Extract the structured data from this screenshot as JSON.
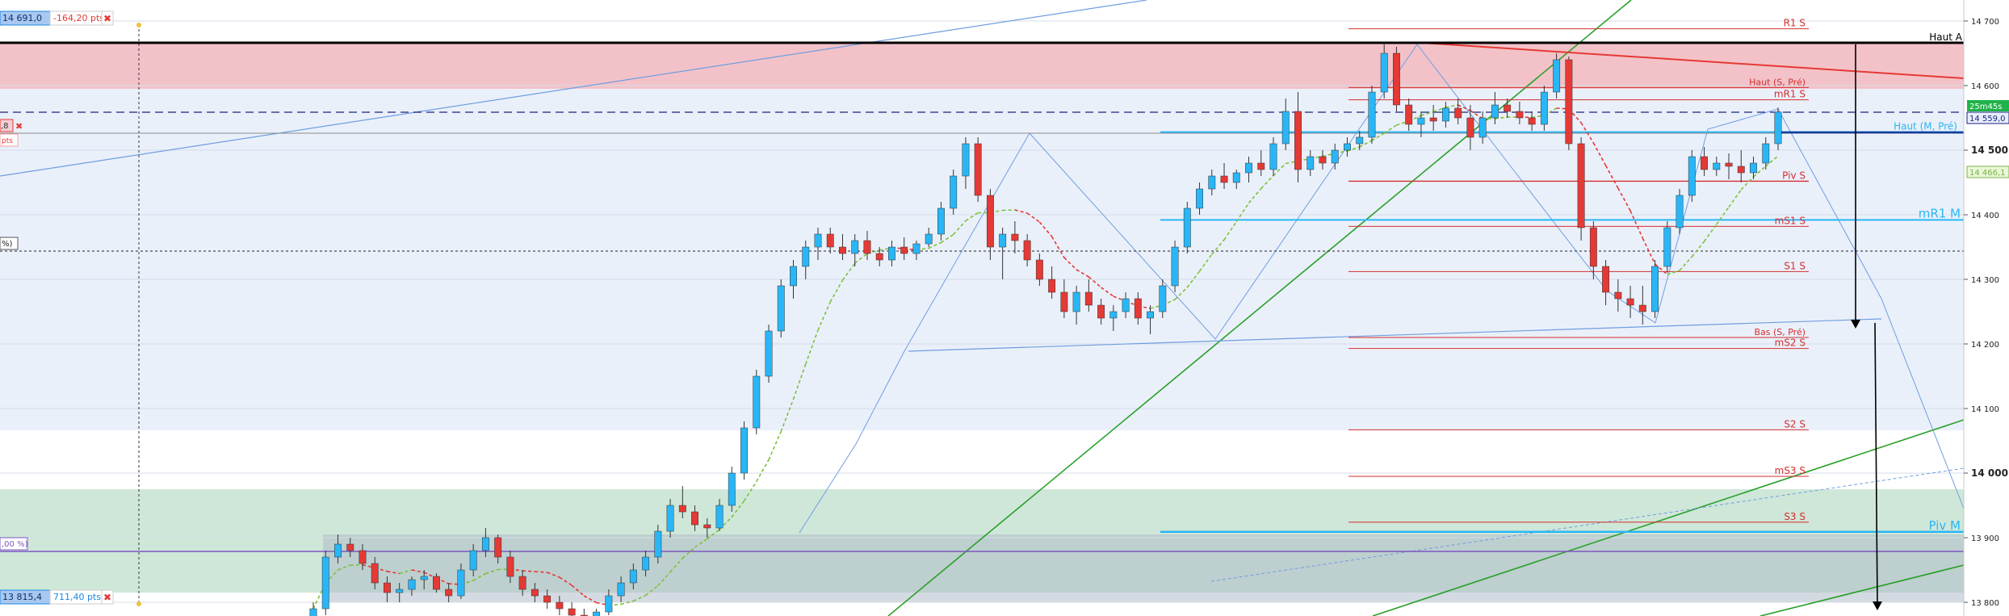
{
  "chart_data": {
    "type": "candlestick",
    "title": "",
    "xlabel": "",
    "ylabel": "",
    "y_range": [
      13800,
      14730
    ],
    "y_ticks": [
      "14 700",
      "14 600",
      "14 500",
      "14 400",
      "14 300",
      "14 200",
      "14 100",
      "14 000",
      "13 900",
      "13 800"
    ],
    "y_tick_values": [
      14700,
      14600,
      14500,
      14400,
      14300,
      14200,
      14100,
      14000,
      13900,
      13800
    ],
    "bold_ticks": [
      14500,
      14000
    ],
    "grid": "horizontal bands",
    "price_tags": {
      "timer": "25m45s",
      "last": "14 559,0",
      "ma": "14 466,1"
    },
    "measure_boxes": [
      {
        "price": "14 691,0",
        "change": "-164,20 pts",
        "color": "#e53935"
      },
      {
        "price": "13 815,4",
        "change": "711,40 pts",
        "color": "#1e88e5"
      }
    ],
    "left_fragments": [
      ",8",
      "pts",
      "%)",
      ",00 %)"
    ],
    "zones": [
      {
        "name": "resistance-zone",
        "from": 14595,
        "to": 14668,
        "color": "#f3c2c8"
      },
      {
        "name": "support-zone",
        "from": 13815,
        "to": 13975,
        "color": "#cfe7d8"
      }
    ],
    "horizontal_levels": [
      {
        "label": "Haut A",
        "value": 14666,
        "color": "#000000"
      },
      {
        "label": "R1 S",
        "value": 14688,
        "color": "#d32f2f"
      },
      {
        "label": "Haut (S, Pré)",
        "value": 14597,
        "color": "#d32f2f"
      },
      {
        "label": "mR1 S",
        "value": 14578,
        "color": "#d32f2f"
      },
      {
        "label": "Haut (M, Pré)",
        "value": 14528,
        "color": "#29b6f6"
      },
      {
        "label": "Piv S",
        "value": 14452,
        "color": "#d32f2f"
      },
      {
        "label": "mR1 M",
        "value": 14392,
        "color": "#29b6f6"
      },
      {
        "label": "mS1 S",
        "value": 14382,
        "color": "#d32f2f"
      },
      {
        "label": "S1 S",
        "value": 14312,
        "color": "#d32f2f"
      },
      {
        "label": "Bas (S, Pré)",
        "value": 14210,
        "color": "#d32f2f"
      },
      {
        "label": "mS2 S",
        "value": 14193,
        "color": "#d32f2f"
      },
      {
        "label": "S2 S",
        "value": 14067,
        "color": "#d32f2f"
      },
      {
        "label": "mS3 S",
        "value": 13995,
        "color": "#d32f2f"
      },
      {
        "label": "S3 S",
        "value": 13924,
        "color": "#d32f2f"
      },
      {
        "label": "Piv M",
        "value": 13909,
        "color": "#29b6f6"
      }
    ],
    "series": [
      {
        "type": "candlestick",
        "values": [
          [
            13760,
            13800,
            13740,
            13790
          ],
          [
            13790,
            13880,
            13780,
            13870
          ],
          [
            13870,
            13905,
            13860,
            13890
          ],
          [
            13890,
            13900,
            13870,
            13880
          ],
          [
            13880,
            13890,
            13850,
            13860
          ],
          [
            13860,
            13870,
            13820,
            13830
          ],
          [
            13830,
            13840,
            13800,
            13815
          ],
          [
            13815,
            13830,
            13800,
            13820
          ],
          [
            13820,
            13840,
            13810,
            13835
          ],
          [
            13835,
            13850,
            13820,
            13840
          ],
          [
            13840,
            13845,
            13815,
            13820
          ],
          [
            13820,
            13830,
            13800,
            13810
          ],
          [
            13810,
            13860,
            13805,
            13850
          ],
          [
            13850,
            13890,
            13840,
            13880
          ],
          [
            13880,
            13915,
            13870,
            13900
          ],
          [
            13900,
            13905,
            13860,
            13870
          ],
          [
            13870,
            13880,
            13830,
            13840
          ],
          [
            13840,
            13850,
            13810,
            13820
          ],
          [
            13820,
            13830,
            13800,
            13810
          ],
          [
            13810,
            13820,
            13790,
            13800
          ],
          [
            13800,
            13810,
            13780,
            13790
          ],
          [
            13790,
            13800,
            13770,
            13780
          ],
          [
            13780,
            13790,
            13760,
            13770
          ],
          [
            13770,
            13790,
            13760,
            13785
          ],
          [
            13785,
            13820,
            13780,
            13810
          ],
          [
            13810,
            13840,
            13800,
            13830
          ],
          [
            13830,
            13860,
            13820,
            13850
          ],
          [
            13850,
            13880,
            13840,
            13870
          ],
          [
            13870,
            13920,
            13860,
            13910
          ],
          [
            13910,
            13960,
            13900,
            13950
          ],
          [
            13950,
            13980,
            13930,
            13940
          ],
          [
            13940,
            13950,
            13910,
            13920
          ],
          [
            13920,
            13930,
            13900,
            13915
          ],
          [
            13915,
            13960,
            13910,
            13950
          ],
          [
            13950,
            14010,
            13940,
            14000
          ],
          [
            14000,
            14080,
            13990,
            14070
          ],
          [
            14070,
            14160,
            14060,
            14150
          ],
          [
            14150,
            14230,
            14140,
            14220
          ],
          [
            14220,
            14300,
            14210,
            14290
          ],
          [
            14290,
            14330,
            14270,
            14320
          ],
          [
            14320,
            14360,
            14300,
            14350
          ],
          [
            14350,
            14380,
            14330,
            14370
          ],
          [
            14370,
            14380,
            14340,
            14350
          ],
          [
            14350,
            14370,
            14330,
            14340
          ],
          [
            14340,
            14370,
            14320,
            14360
          ],
          [
            14360,
            14375,
            14330,
            14340
          ],
          [
            14340,
            14350,
            14320,
            14330
          ],
          [
            14330,
            14360,
            14320,
            14350
          ],
          [
            14350,
            14365,
            14330,
            14340
          ],
          [
            14340,
            14360,
            14330,
            14355
          ],
          [
            14355,
            14380,
            14350,
            14370
          ],
          [
            14370,
            14420,
            14360,
            14410
          ],
          [
            14410,
            14470,
            14400,
            14460
          ],
          [
            14460,
            14520,
            14440,
            14510
          ],
          [
            14510,
            14520,
            14420,
            14430
          ],
          [
            14430,
            14440,
            14330,
            14350
          ],
          [
            14350,
            14380,
            14300,
            14370
          ],
          [
            14370,
            14390,
            14340,
            14360
          ],
          [
            14360,
            14370,
            14320,
            14330
          ],
          [
            14330,
            14340,
            14290,
            14300
          ],
          [
            14300,
            14320,
            14270,
            14280
          ],
          [
            14280,
            14300,
            14240,
            14250
          ],
          [
            14250,
            14290,
            14230,
            14280
          ],
          [
            14280,
            14300,
            14250,
            14260
          ],
          [
            14260,
            14270,
            14230,
            14240
          ],
          [
            14240,
            14260,
            14220,
            14250
          ],
          [
            14250,
            14280,
            14240,
            14270
          ],
          [
            14270,
            14280,
            14230,
            14240
          ],
          [
            14240,
            14260,
            14215,
            14250
          ],
          [
            14250,
            14300,
            14240,
            14290
          ],
          [
            14290,
            14360,
            14280,
            14350
          ],
          [
            14350,
            14420,
            14340,
            14410
          ],
          [
            14410,
            14450,
            14400,
            14440
          ],
          [
            14440,
            14470,
            14430,
            14460
          ],
          [
            14460,
            14480,
            14440,
            14450
          ],
          [
            14450,
            14470,
            14440,
            14465
          ],
          [
            14465,
            14490,
            14450,
            14480
          ],
          [
            14480,
            14500,
            14460,
            14470
          ],
          [
            14470,
            14520,
            14460,
            14510
          ],
          [
            14510,
            14580,
            14500,
            14560
          ],
          [
            14560,
            14590,
            14450,
            14470
          ],
          [
            14470,
            14500,
            14460,
            14490
          ],
          [
            14490,
            14500,
            14470,
            14480
          ],
          [
            14480,
            14510,
            14470,
            14500
          ],
          [
            14500,
            14520,
            14490,
            14510
          ],
          [
            14510,
            14530,
            14500,
            14520
          ],
          [
            14520,
            14600,
            14510,
            14590
          ],
          [
            14590,
            14666,
            14580,
            14650
          ],
          [
            14650,
            14660,
            14560,
            14570
          ],
          [
            14570,
            14580,
            14530,
            14540
          ],
          [
            14540,
            14560,
            14520,
            14550
          ],
          [
            14550,
            14570,
            14530,
            14545
          ],
          [
            14545,
            14575,
            14535,
            14565
          ],
          [
            14565,
            14580,
            14540,
            14550
          ],
          [
            14550,
            14570,
            14500,
            14520
          ],
          [
            14520,
            14560,
            14510,
            14550
          ],
          [
            14550,
            14590,
            14540,
            14570
          ],
          [
            14570,
            14580,
            14550,
            14560
          ],
          [
            14560,
            14575,
            14540,
            14550
          ],
          [
            14550,
            14560,
            14530,
            14540
          ],
          [
            14540,
            14600,
            14530,
            14590
          ],
          [
            14590,
            14650,
            14580,
            14640
          ],
          [
            14640,
            14645,
            14500,
            14510
          ],
          [
            14510,
            14520,
            14360,
            14380
          ],
          [
            14380,
            14390,
            14300,
            14320
          ],
          [
            14320,
            14330,
            14260,
            14280
          ],
          [
            14280,
            14300,
            14250,
            14270
          ],
          [
            14270,
            14290,
            14240,
            14260
          ],
          [
            14260,
            14290,
            14230,
            14250
          ],
          [
            14250,
            14330,
            14240,
            14320
          ],
          [
            14320,
            14390,
            14310,
            14380
          ],
          [
            14380,
            14440,
            14370,
            14430
          ],
          [
            14430,
            14500,
            14420,
            14490
          ],
          [
            14490,
            14505,
            14460,
            14470
          ],
          [
            14470,
            14490,
            14460,
            14480
          ],
          [
            14480,
            14495,
            14455,
            14475
          ],
          [
            14475,
            14500,
            14450,
            14465
          ],
          [
            14465,
            14490,
            14455,
            14480
          ],
          [
            14480,
            14520,
            14470,
            14510
          ],
          [
            14510,
            14566,
            14500,
            14559
          ]
        ]
      }
    ]
  }
}
